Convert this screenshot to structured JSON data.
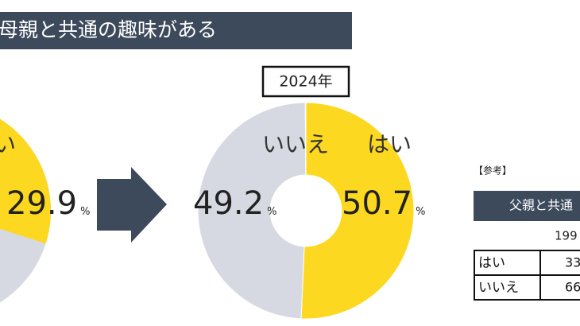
{
  "header": {
    "title": "母親と共通の趣味がある"
  },
  "chart_data": [
    {
      "type": "pie",
      "categories": [
        "い"
      ],
      "values": [
        29.9
      ],
      "unit": "%",
      "colors": [
        "#fcd820"
      ],
      "rest_color": "#d6d9e2"
    },
    {
      "type": "donut",
      "title": "2024年",
      "categories": [
        "はい",
        "いいえ"
      ],
      "values": [
        50.7,
        49.2
      ],
      "unit": "%",
      "colors": [
        "#fcd820",
        "#d6d9e2"
      ]
    }
  ],
  "reference": {
    "label": "【参考】",
    "title": "父親と共通",
    "year": "199",
    "rows": [
      [
        "はい",
        "33"
      ],
      [
        "いいえ",
        "66"
      ]
    ]
  }
}
